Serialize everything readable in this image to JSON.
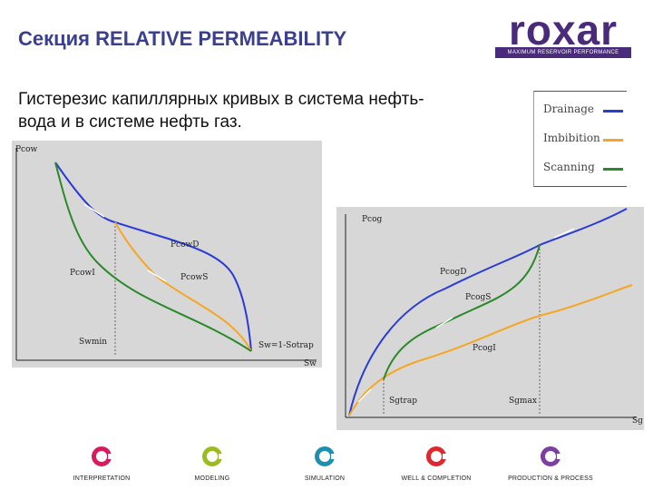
{
  "slide": {
    "title": "Секция RELATIVE PERMEABILITY",
    "subtitle": "Гистерезис капиллярных кривых в система нефть-вода и в системе нефть газ."
  },
  "logo": {
    "word": "roxar",
    "tagline": "MAXIMUM RESERVOIR PERFORMANCE",
    "color": "#4a2a7a"
  },
  "legend": {
    "items": [
      {
        "label": "Drainage",
        "color": "#2a3bd6"
      },
      {
        "label": "Imbibition",
        "color": "#f5a623"
      },
      {
        "label": "Scanning",
        "color": "#2a8a2a"
      }
    ]
  },
  "chart_left": {
    "y_label": "Pcow",
    "x_label": "Sw",
    "labels": {
      "drainage": "PcowD",
      "imbibition_scan": "PcowS",
      "scanning": "PcowI",
      "swmin": "Swmin",
      "end": "Sw=1-Sotrap"
    }
  },
  "chart_right": {
    "y_label": "Pcog",
    "x_label": "Sg",
    "labels": {
      "drainage": "PcogD",
      "scan": "PcogS",
      "imbibition": "PcogI",
      "sgtrap": "Sgtrap",
      "sgmax": "Sgmax"
    }
  },
  "footer": {
    "items": [
      {
        "label": "INTERPRETATION",
        "color": "#d81b60"
      },
      {
        "label": "MODELING",
        "color": "#9bbb1f"
      },
      {
        "label": "SIMULATION",
        "color": "#1e8fb0"
      },
      {
        "label": "WELL & COMPLETION",
        "color": "#e0262e"
      },
      {
        "label": "PRODUCTION & PROCESS",
        "color": "#7a3fa0"
      }
    ]
  }
}
